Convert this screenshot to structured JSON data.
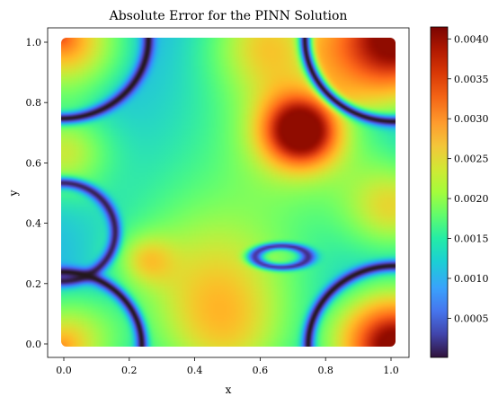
{
  "chart_data": {
    "type": "heatmap",
    "title": "Absolute Error for the PINN Solution",
    "xlabel": "x",
    "ylabel": "y",
    "xlim": [
      -0.05,
      1.05
    ],
    "ylim": [
      -0.05,
      1.05
    ],
    "x_ticks": [
      "0.0",
      "0.2",
      "0.4",
      "0.6",
      "0.8",
      "1.0"
    ],
    "y_ticks": [
      "0.0",
      "0.2",
      "0.4",
      "0.6",
      "0.8",
      "1.0"
    ],
    "colormap": "turbo",
    "colorbar": {
      "vmin": 1e-05,
      "vmax": 0.00415,
      "ticks": [
        "0.0005",
        "0.0010",
        "0.0015",
        "0.0020",
        "0.0025",
        "0.0030",
        "0.0035",
        "0.0040"
      ],
      "placement": "right"
    },
    "grid": false,
    "legend": "none"
  }
}
